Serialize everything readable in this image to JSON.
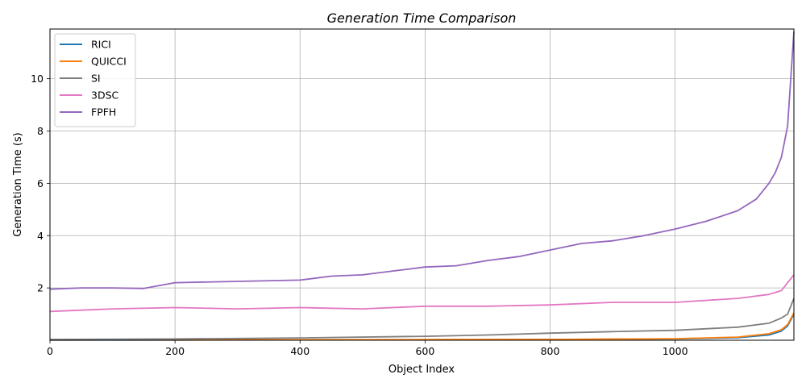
{
  "chart_data": {
    "type": "line",
    "title": "Generation Time Comparison",
    "xlabel": "Object Index",
    "ylabel": "Generation Time (s)",
    "xlim": [
      0,
      1190
    ],
    "ylim": [
      0,
      11.9
    ],
    "xticks": [
      0,
      200,
      400,
      600,
      800,
      1000
    ],
    "yticks": [
      2,
      4,
      6,
      8,
      10
    ],
    "grid": true,
    "legend_position": "top-left",
    "series": [
      {
        "name": "RICI",
        "color": "#1f77b4",
        "x": [
          0,
          200,
          400,
          600,
          800,
          1000,
          1100,
          1150,
          1170,
          1180,
          1190
        ],
        "y": [
          0.01,
          0.01,
          0.015,
          0.02,
          0.03,
          0.05,
          0.1,
          0.2,
          0.35,
          0.55,
          1.0
        ]
      },
      {
        "name": "QUICCI",
        "color": "#ff7f0e",
        "x": [
          0,
          200,
          400,
          600,
          800,
          1000,
          1100,
          1150,
          1170,
          1180,
          1190
        ],
        "y": [
          0.01,
          0.015,
          0.02,
          0.025,
          0.03,
          0.06,
          0.12,
          0.25,
          0.4,
          0.6,
          1.05
        ]
      },
      {
        "name": "SI",
        "color": "#7f7f7f",
        "x": [
          0,
          200,
          400,
          600,
          700,
          800,
          900,
          1000,
          1100,
          1150,
          1170,
          1180,
          1190
        ],
        "y": [
          0.03,
          0.05,
          0.09,
          0.15,
          0.2,
          0.27,
          0.33,
          0.38,
          0.5,
          0.65,
          0.85,
          1.0,
          1.6
        ]
      },
      {
        "name": "3DSC",
        "color": "#e377c2",
        "x": [
          0,
          100,
          200,
          300,
          400,
          500,
          600,
          700,
          800,
          900,
          1000,
          1100,
          1150,
          1170,
          1180,
          1190
        ],
        "y": [
          1.1,
          1.2,
          1.25,
          1.2,
          1.25,
          1.2,
          1.3,
          1.3,
          1.35,
          1.45,
          1.45,
          1.6,
          1.75,
          1.9,
          2.2,
          2.5
        ]
      },
      {
        "name": "FPFH",
        "color": "#9467bd",
        "x": [
          0,
          50,
          100,
          150,
          200,
          300,
          400,
          450,
          500,
          550,
          600,
          650,
          700,
          750,
          800,
          850,
          900,
          950,
          1000,
          1050,
          1100,
          1130,
          1150,
          1160,
          1170,
          1175,
          1180,
          1185,
          1190
        ],
        "y": [
          1.95,
          2.0,
          2.0,
          1.98,
          2.2,
          2.25,
          2.3,
          2.45,
          2.5,
          2.65,
          2.8,
          2.85,
          3.05,
          3.2,
          3.45,
          3.7,
          3.8,
          4.0,
          4.25,
          4.55,
          4.95,
          5.4,
          6.0,
          6.4,
          7.0,
          7.6,
          8.2,
          10.0,
          11.8
        ]
      }
    ]
  }
}
